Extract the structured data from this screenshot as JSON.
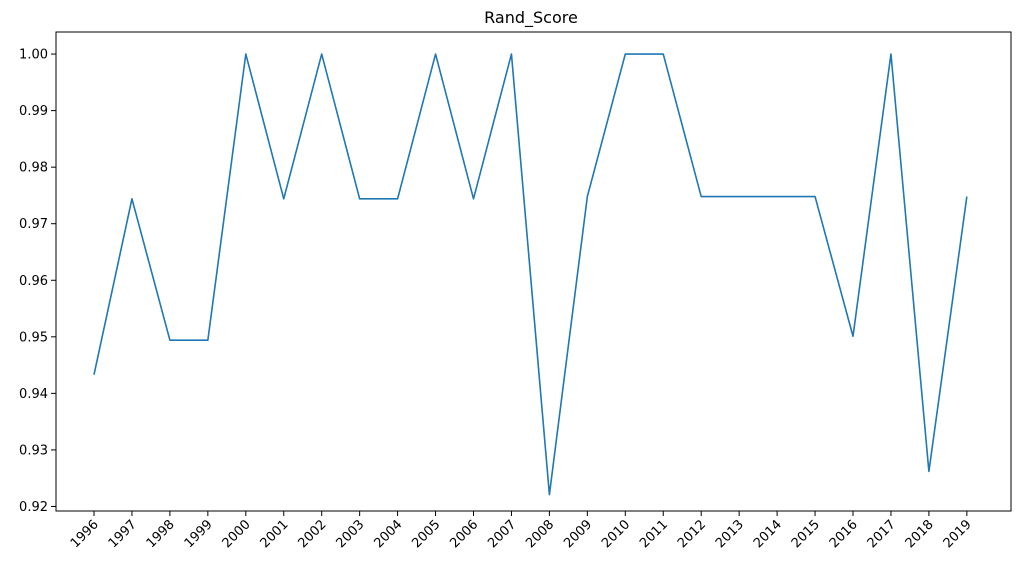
{
  "chart_data": {
    "type": "line",
    "title": "Rand_Score",
    "xlabel": "",
    "ylabel": "",
    "x": [
      "1996",
      "1997",
      "1998",
      "1999",
      "2000",
      "2001",
      "2002",
      "2003",
      "2004",
      "2005",
      "2006",
      "2007",
      "2008",
      "2009",
      "2010",
      "2011",
      "2012",
      "2013",
      "2014",
      "2015",
      "2016",
      "2017",
      "2018",
      "2019"
    ],
    "series": [
      {
        "values": [
          0.9433,
          0.9744,
          0.9494,
          0.9494,
          1.0,
          0.9744,
          1.0,
          0.9744,
          0.9744,
          1.0,
          0.9744,
          1.0,
          0.9221,
          0.9748,
          1.0,
          1.0,
          0.9748,
          0.9748,
          0.9748,
          0.9748,
          0.9501,
          1.0,
          0.9262,
          0.9748
        ]
      }
    ],
    "ylim": [
      0.9192,
      1.0039
    ],
    "yticks": [
      "0.92",
      "0.93",
      "0.94",
      "0.95",
      "0.96",
      "0.97",
      "0.98",
      "0.99",
      "1.00"
    ],
    "grid": false,
    "legend": "none"
  },
  "colors": {
    "series_line": "#1f77b4",
    "axis": "#000000"
  }
}
